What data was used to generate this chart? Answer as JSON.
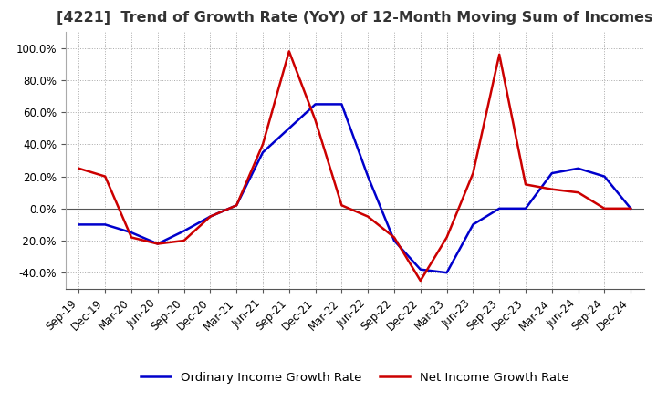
{
  "title": "[4221]  Trend of Growth Rate (YoY) of 12-Month Moving Sum of Incomes",
  "ylim": [
    -0.5,
    1.1
  ],
  "yticks": [
    -0.4,
    -0.2,
    0.0,
    0.2,
    0.4,
    0.6,
    0.8,
    1.0
  ],
  "legend_labels": [
    "Ordinary Income Growth Rate",
    "Net Income Growth Rate"
  ],
  "line_colors": [
    "#0000cc",
    "#cc0000"
  ],
  "x_labels": [
    "Sep-19",
    "Dec-19",
    "Mar-20",
    "Jun-20",
    "Sep-20",
    "Dec-20",
    "Mar-21",
    "Jun-21",
    "Sep-21",
    "Dec-21",
    "Mar-22",
    "Jun-22",
    "Sep-22",
    "Dec-22",
    "Mar-23",
    "Jun-23",
    "Sep-23",
    "Dec-23",
    "Mar-24",
    "Jun-24",
    "Sep-24",
    "Dec-24"
  ],
  "ordinary_income": [
    -0.1,
    -0.1,
    -0.15,
    -0.22,
    -0.14,
    -0.05,
    0.02,
    0.35,
    0.5,
    0.65,
    0.65,
    0.2,
    -0.2,
    -0.38,
    -0.4,
    -0.1,
    0.0,
    0.0,
    0.22,
    0.25,
    0.2,
    0.0
  ],
  "net_income": [
    0.25,
    0.2,
    -0.18,
    -0.22,
    -0.2,
    -0.05,
    0.02,
    0.4,
    0.98,
    0.55,
    0.02,
    -0.05,
    -0.18,
    -0.45,
    -0.18,
    0.22,
    0.96,
    0.15,
    0.12,
    0.1,
    0.0,
    0.0
  ],
  "background_color": "#ffffff",
  "grid_color": "#aaaaaa",
  "title_fontsize": 11.5,
  "tick_fontsize": 8.5
}
